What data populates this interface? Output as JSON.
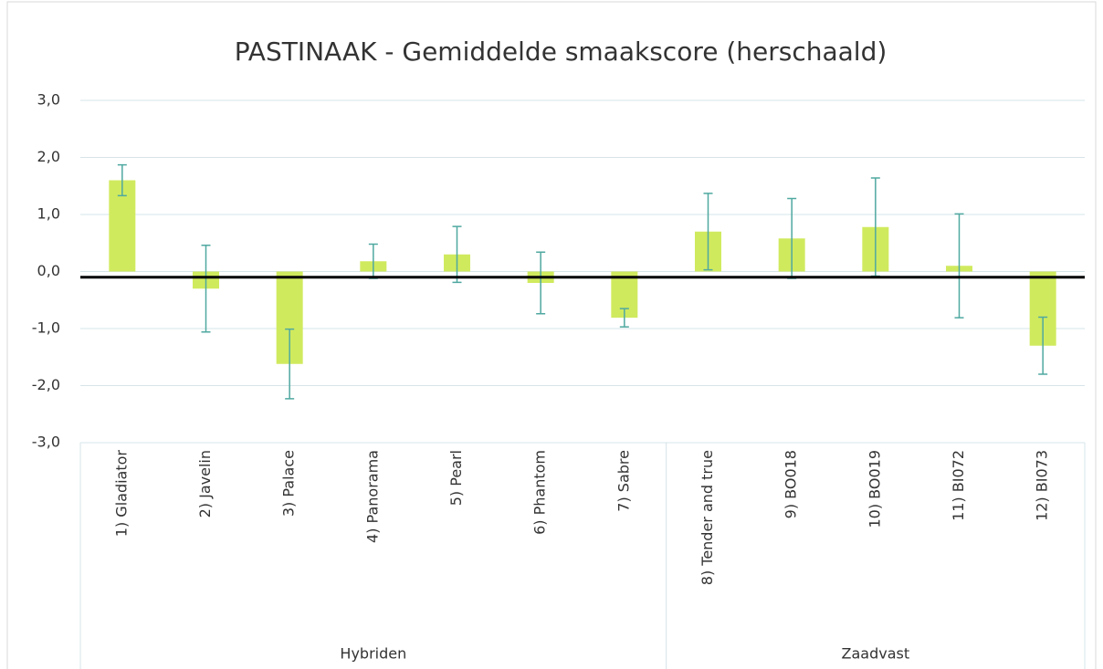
{
  "chart_data": {
    "type": "bar",
    "title": "PASTINAAK - Gemiddelde smaakscore (herschaald)",
    "categories": [
      "1) Gladiator",
      "2) Javelin",
      "3) Palace",
      "4) Panorama",
      "5) Pearl",
      "6) Phantom",
      "7) Sabre",
      "8) Tender and true",
      "9) BO018",
      "10) BO019",
      "11) BI072",
      "12) BI073"
    ],
    "values": [
      1.6,
      -0.3,
      -1.62,
      0.18,
      0.3,
      -0.2,
      -0.81,
      0.7,
      0.58,
      0.78,
      0.1,
      -1.3
    ],
    "errors": [
      0.27,
      0.76,
      0.61,
      0.3,
      0.49,
      0.54,
      0.16,
      0.67,
      0.7,
      0.86,
      0.91,
      0.5
    ],
    "group_labels": [
      "Hybriden",
      "Zaadvast"
    ],
    "category_groups": [
      0,
      0,
      0,
      0,
      0,
      0,
      0,
      1,
      1,
      1,
      1,
      1
    ],
    "color": "#d0ea5e",
    "error_color": "#4fa8a0",
    "reference_line": -0.1,
    "ylim": [
      -3,
      3
    ],
    "yticks": [
      {
        "value": -3,
        "label": "-3,0"
      },
      {
        "value": -2,
        "label": "-2,0"
      },
      {
        "value": -1,
        "label": "-1,0"
      },
      {
        "value": 0,
        "label": "0,0"
      },
      {
        "value": 1,
        "label": "1,0"
      },
      {
        "value": 2,
        "label": "2,0"
      },
      {
        "value": 3,
        "label": "3,0"
      }
    ],
    "grid": true
  }
}
